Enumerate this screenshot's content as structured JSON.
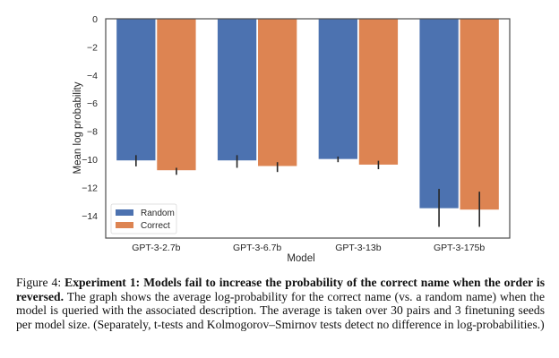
{
  "chart_data": {
    "type": "bar",
    "title": "",
    "xlabel": "Model",
    "ylabel": "Mean log probability",
    "categories": [
      "GPT-3-2.7b",
      "GPT-3-6.7b",
      "GPT-3-13b",
      "GPT-3-175b"
    ],
    "ylim": [
      -15.6,
      0
    ],
    "yticks": [
      0,
      -2,
      -4,
      -6,
      -8,
      -10,
      -12,
      -14
    ],
    "ytick_labels": [
      "0",
      "−2",
      "−4",
      "−6",
      "−8",
      "−10",
      "−12",
      "−14"
    ],
    "grid": false,
    "legend_position": "bottom-left",
    "series": [
      {
        "name": "Random",
        "color": "#4c72b0",
        "values": [
          -10.1,
          -10.1,
          -10.0,
          -13.5
        ],
        "err_low": [
          -10.5,
          -10.6,
          -10.2,
          -14.8
        ],
        "err_high": [
          -9.7,
          -9.7,
          -9.8,
          -12.1
        ]
      },
      {
        "name": "Correct",
        "color": "#dd8452",
        "values": [
          -10.8,
          -10.5,
          -10.4,
          -13.6
        ],
        "err_low": [
          -11.1,
          -10.9,
          -10.7,
          -14.8
        ],
        "err_high": [
          -10.6,
          -10.2,
          -10.1,
          -12.3
        ]
      }
    ]
  },
  "caption": {
    "label": "Figure 4: ",
    "bold": "Experiment 1: Models fail to increase the probability of the correct name when the order is reversed.",
    "text": " The graph shows the average log-probability for the correct name (vs. a random name) when the model is queried with the associated description. The average is taken over 30 pairs and 3 finetuning seeds per model size. (Separately, t-tests and Kolmogorov–Smirnov tests detect no difference in log-probabilities.)"
  }
}
